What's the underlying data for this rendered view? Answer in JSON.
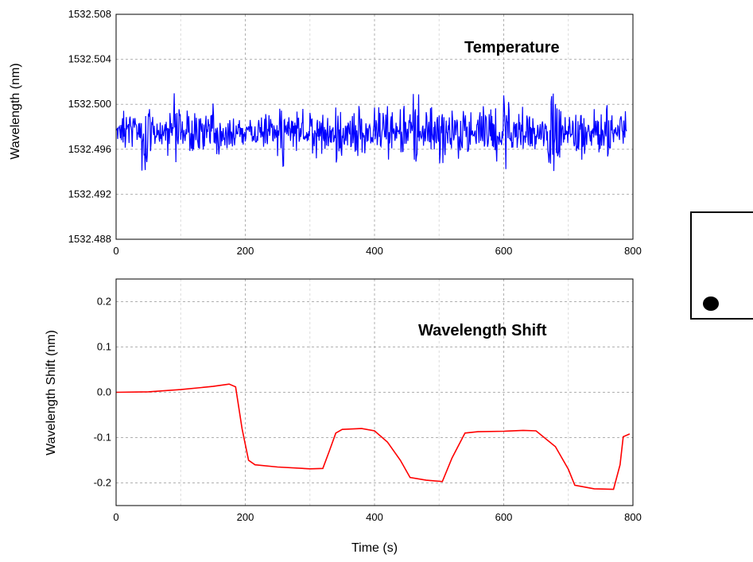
{
  "chart_data": [
    {
      "type": "line",
      "title": "",
      "annotation": "Temperature",
      "xlabel": "",
      "ylabel": "Wavelength (nm)",
      "xlim": [
        0,
        800
      ],
      "ylim": [
        1532.488,
        1532.508
      ],
      "x_ticks": [
        "0",
        "200",
        "400",
        "600",
        "800"
      ],
      "y_ticks": [
        "1532.488",
        "1532.492",
        "1532.496",
        "1532.500",
        "1532.504",
        "1532.508"
      ],
      "grid": true,
      "color": "#0000ff",
      "series": [
        {
          "x": [
            0,
            10,
            20,
            30,
            40,
            50,
            60,
            70,
            80,
            90,
            100,
            110,
            120,
            130,
            140,
            150,
            160,
            170,
            180,
            190,
            200,
            210,
            220,
            230,
            240,
            250,
            260,
            270,
            280,
            290,
            300,
            310,
            320,
            330,
            340,
            350,
            360,
            370,
            380,
            390,
            400,
            410,
            420,
            430,
            440,
            450,
            460,
            470,
            480,
            490,
            500,
            510,
            520,
            530,
            540,
            550,
            560,
            570,
            580,
            590,
            600,
            610,
            620,
            630,
            640,
            650,
            660,
            670,
            680,
            690,
            700,
            710,
            720,
            730,
            740,
            750,
            760,
            770,
            780,
            790
          ],
          "values": [
            1532.4975,
            1532.499,
            1532.4962,
            1532.4983,
            1532.4945,
            1532.4995,
            1532.4968,
            1532.498,
            1532.4958,
            1532.5002,
            1532.4972,
            1532.4988,
            1532.496,
            1532.4985,
            1532.4966,
            1532.4992,
            1532.497,
            1532.4982,
            1532.4963,
            1532.4978,
            1532.4972,
            1532.4976,
            1532.4985,
            1532.4992,
            1532.4978,
            1532.495,
            1532.4983,
            1532.4965,
            1532.499,
            1532.4972,
            1532.4985,
            1532.4958,
            1532.499,
            1532.497,
            1532.4993,
            1532.4965,
            1532.4987,
            1532.4955,
            1532.4992,
            1532.4972,
            1532.499,
            1532.496,
            1532.4996,
            1532.4974,
            1532.5,
            1532.4966,
            1532.5005,
            1532.497,
            1532.4994,
            1532.4964,
            1532.4998,
            1532.4968,
            1532.4992,
            1532.496,
            1532.4995,
            1532.4972,
            1532.499,
            1532.4958,
            1532.4997,
            1532.497,
            1532.5002,
            1532.4965,
            1532.4992,
            1532.4955,
            1532.4995,
            1532.4972,
            1532.499,
            1532.4942,
            1532.4993,
            1532.4968,
            1532.4985,
            1532.496,
            1532.4993,
            1532.497,
            1532.499,
            1532.4962,
            1532.4995,
            1532.4972,
            1532.4988,
            1532.4976
          ]
        }
      ]
    },
    {
      "type": "line",
      "title": "",
      "annotation": "Wavelength Shift",
      "xlabel": "Time (s)",
      "ylabel": "Wavelength Shift (nm)",
      "xlim": [
        0,
        800
      ],
      "ylim": [
        -0.25,
        0.25
      ],
      "x_ticks": [
        "0",
        "200",
        "400",
        "600",
        "800"
      ],
      "y_ticks": [
        "-0.2",
        "-0.1",
        "0.0",
        "0.1",
        "0.2"
      ],
      "grid": true,
      "color": "#ff0000",
      "series": [
        {
          "x": [
            0,
            50,
            100,
            150,
            175,
            185,
            195,
            205,
            215,
            250,
            300,
            320,
            330,
            340,
            350,
            380,
            400,
            420,
            440,
            455,
            480,
            505,
            520,
            540,
            560,
            600,
            630,
            650,
            680,
            700,
            710,
            740,
            770,
            780,
            785,
            795
          ],
          "values": [
            0.0,
            0.001,
            0.006,
            0.013,
            0.018,
            0.012,
            -0.08,
            -0.15,
            -0.16,
            -0.165,
            -0.169,
            -0.168,
            -0.13,
            -0.09,
            -0.082,
            -0.08,
            -0.085,
            -0.11,
            -0.15,
            -0.188,
            -0.194,
            -0.197,
            -0.145,
            -0.09,
            -0.087,
            -0.086,
            -0.084,
            -0.085,
            -0.12,
            -0.17,
            -0.205,
            -0.213,
            -0.214,
            -0.16,
            -0.098,
            -0.092
          ]
        }
      ]
    }
  ]
}
